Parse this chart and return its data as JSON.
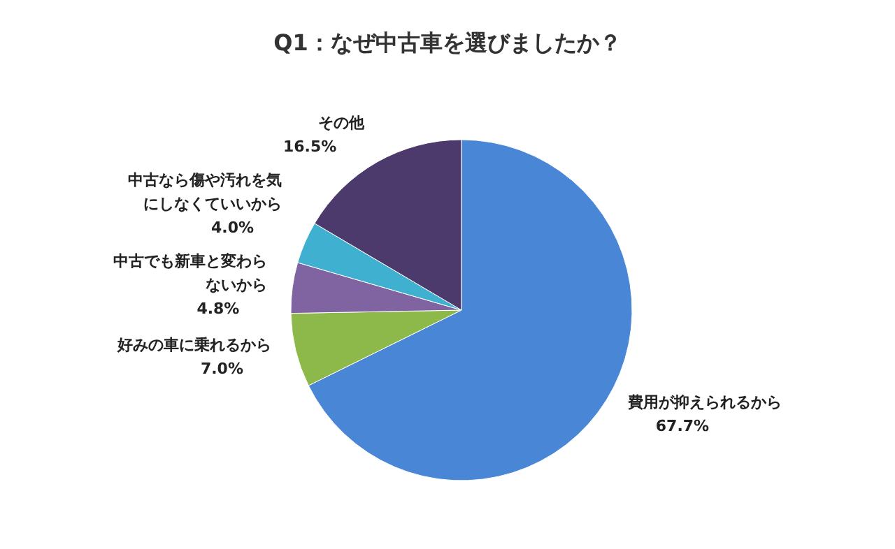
{
  "chart_data": {
    "type": "pie",
    "title": "Q1：なぜ中古車を選びましたか？",
    "categories": [
      "費用が抑えられるから",
      "好みの車に乗れるから",
      "中古でも新車と変わらないから",
      "中古なら傷や汚れを気にしなくていいから",
      "その他"
    ],
    "values": [
      67.7,
      7.0,
      4.8,
      4.0,
      16.5
    ],
    "colors": [
      "#4a86d6",
      "#8db84a",
      "#8064a2",
      "#3fb0cf",
      "#4b3a6b"
    ],
    "value_labels": [
      "67.7%",
      "7.0%",
      "4.8%",
      "4.0%",
      "16.5%"
    ],
    "legend": false
  }
}
